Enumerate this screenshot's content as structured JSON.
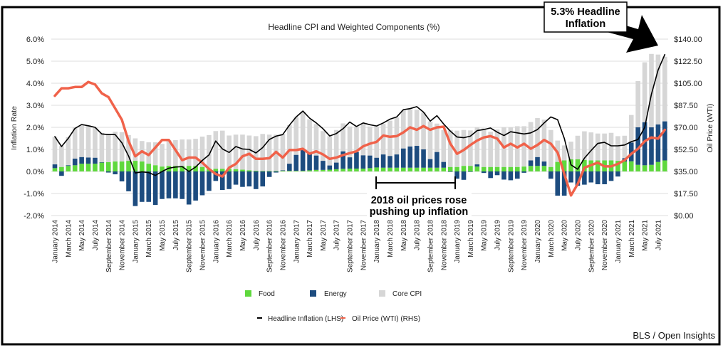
{
  "chart_data": {
    "type": "bar",
    "title": "Headline CPI and Weighted Components (%)",
    "ylabel": "Inflation Rate",
    "y2label": "Oil Price (WTI)",
    "ylim": [
      -2.0,
      6.0
    ],
    "y2lim": [
      0,
      140
    ],
    "yticks": [
      "-2.0%",
      "-1.0%",
      "0.0%",
      "1.0%",
      "2.0%",
      "3.0%",
      "4.0%",
      "5.0%",
      "6.0%"
    ],
    "y2ticks": [
      "$0.00",
      "$17.50",
      "$35.00",
      "$52.50",
      "$70.00",
      "$87.50",
      "$105.00",
      "$122.50",
      "$140.00"
    ],
    "grid": true,
    "legend_placement": "bottom",
    "months": [
      "January",
      "February",
      "March",
      "April",
      "May",
      "June",
      "July",
      "August",
      "September",
      "October",
      "November",
      "December"
    ],
    "start_year": 2014,
    "n_months": 92,
    "series": [
      {
        "name": "Food",
        "kind": "stacked-bar",
        "color": "#5fd83d",
        "values": [
          0.15,
          0.2,
          0.25,
          0.28,
          0.35,
          0.35,
          0.35,
          0.4,
          0.42,
          0.45,
          0.45,
          0.48,
          0.48,
          0.45,
          0.35,
          0.28,
          0.22,
          0.25,
          0.25,
          0.25,
          0.25,
          0.25,
          0.2,
          0.12,
          0.12,
          0.12,
          0.12,
          0.1,
          0.08,
          0.05,
          0.03,
          0.02,
          0.02,
          0.02,
          0.03,
          0.03,
          0.03,
          0.03,
          0.05,
          0.07,
          0.07,
          0.08,
          0.1,
          0.12,
          0.13,
          0.13,
          0.13,
          0.15,
          0.18,
          0.17,
          0.17,
          0.17,
          0.17,
          0.17,
          0.17,
          0.17,
          0.17,
          0.17,
          0.17,
          0.2,
          0.2,
          0.25,
          0.25,
          0.22,
          0.2,
          0.2,
          0.2,
          0.2,
          0.2,
          0.2,
          0.22,
          0.25,
          0.25,
          0.25,
          0.2,
          0.43,
          0.5,
          0.55,
          0.55,
          0.52,
          0.5,
          0.5,
          0.5,
          0.5,
          0.48,
          0.45,
          0.46,
          0.3,
          0.28,
          0.3,
          0.43,
          0.5
        ]
      },
      {
        "name": "Energy",
        "kind": "stacked-bar",
        "color": "#1d4c7f",
        "values": [
          0.17,
          -0.2,
          0.03,
          0.3,
          0.3,
          0.28,
          0.27,
          0.02,
          -0.05,
          -0.13,
          -0.45,
          -0.9,
          -1.57,
          -1.38,
          -1.38,
          -1.52,
          -1.25,
          -1.22,
          -1.22,
          -1.25,
          -1.5,
          -1.32,
          -1.08,
          -0.88,
          -0.43,
          -0.84,
          -0.8,
          -0.6,
          -0.7,
          -0.68,
          -0.8,
          -0.68,
          -0.25,
          -0.05,
          0.02,
          0.32,
          0.72,
          0.94,
          0.79,
          0.65,
          0.41,
          0.19,
          0.3,
          0.79,
          0.51,
          0.75,
          0.6,
          0.57,
          0.44,
          0.6,
          0.53,
          0.6,
          0.87,
          0.96,
          0.99,
          0.83,
          0.39,
          0.71,
          0.26,
          -0.02,
          -0.33,
          -0.38,
          -0.02,
          0.1,
          -0.07,
          -0.3,
          -0.17,
          -0.37,
          -0.4,
          -0.33,
          -0.06,
          0.25,
          0.4,
          0.2,
          -0.33,
          -1.1,
          -1.1,
          -0.5,
          -0.65,
          -0.6,
          -0.5,
          -0.58,
          -0.58,
          -0.43,
          -0.23,
          0.15,
          0.85,
          1.7,
          1.95,
          1.7,
          1.7,
          1.77
        ]
      },
      {
        "name": "Core CPI",
        "kind": "stacked-bar",
        "color": "#d6d6d6",
        "values": [
          1.25,
          0.95,
          1.27,
          1.42,
          1.45,
          1.47,
          1.38,
          1.33,
          1.28,
          1.35,
          1.33,
          1.17,
          1.02,
          0.93,
          0.97,
          1.04,
          1.03,
          1.17,
          1.17,
          1.2,
          1.2,
          1.23,
          1.38,
          1.53,
          1.71,
          1.73,
          1.51,
          1.57,
          1.59,
          1.58,
          1.57,
          1.68,
          1.65,
          1.65,
          1.65,
          1.75,
          1.72,
          1.73,
          1.53,
          1.43,
          1.35,
          1.33,
          1.48,
          1.27,
          1.4,
          1.16,
          1.44,
          1.32,
          1.42,
          1.4,
          1.6,
          1.67,
          1.73,
          1.69,
          1.64,
          1.67,
          1.7,
          1.29,
          1.45,
          1.68,
          1.65,
          1.63,
          1.61,
          1.68,
          1.75,
          1.6,
          1.7,
          1.8,
          1.8,
          1.85,
          1.83,
          1.74,
          1.77,
          1.9,
          1.68,
          0.97,
          0.68,
          0.8,
          1.07,
          1.3,
          1.27,
          1.22,
          1.22,
          1.25,
          1.12,
          1.02,
          1.25,
          2.1,
          2.72,
          3.33,
          3.17,
          2.93
        ]
      },
      {
        "name": "Headline Inflation (LHS)",
        "kind": "line",
        "axis": "left",
        "color": "#000000",
        "values": [
          1.58,
          1.13,
          1.5,
          1.95,
          2.13,
          2.07,
          2.0,
          1.7,
          1.67,
          1.67,
          1.3,
          0.7,
          -0.07,
          -0.02,
          -0.05,
          -0.18,
          0,
          0.15,
          0.2,
          0.22,
          0,
          0.2,
          0.5,
          0.75,
          1.38,
          1.02,
          0.86,
          1.13,
          1.02,
          1.0,
          0.84,
          1.08,
          1.45,
          1.6,
          1.67,
          2.1,
          2.47,
          2.74,
          2.42,
          2.2,
          1.94,
          1.61,
          1.72,
          1.94,
          2.24,
          2.04,
          2.2,
          2.12,
          2.06,
          2.2,
          2.37,
          2.47,
          2.8,
          2.85,
          2.94,
          2.69,
          2.28,
          2.53,
          2.15,
          1.83,
          1.56,
          1.53,
          1.6,
          1.85,
          1.9,
          1.97,
          1.78,
          1.63,
          1.8,
          1.75,
          1.7,
          1.75,
          1.9,
          2.2,
          2.47,
          2.35,
          1.5,
          0.3,
          0.1,
          0.6,
          0.95,
          1.27,
          1.32,
          1.16,
          1.16,
          1.2,
          1.35,
          1.45,
          2.0,
          3.5,
          4.6,
          5.3
        ]
      },
      {
        "name": "Oil Price (WTI) (RHS)",
        "kind": "line",
        "axis": "right",
        "color": "#f0624a",
        "values": [
          95,
          101,
          101,
          102,
          102,
          106,
          104,
          97,
          94,
          85,
          76,
          59,
          47,
          51,
          48,
          54,
          60,
          60,
          52,
          44,
          46,
          46,
          42,
          37,
          33,
          31,
          38,
          41,
          47,
          49,
          45,
          45,
          45.5,
          50.5,
          46,
          52,
          52,
          53,
          49,
          51,
          48.5,
          45,
          46,
          48,
          49.5,
          51,
          55,
          57,
          58.5,
          63.5,
          62.5,
          63,
          66,
          70,
          68,
          71,
          68,
          70,
          70.5,
          57,
          49,
          52,
          56,
          59.5,
          62,
          63,
          61,
          54,
          57,
          54,
          57,
          53,
          56,
          60,
          57,
          50,
          33,
          16,
          25,
          38,
          40,
          42,
          39,
          39,
          41,
          44,
          49,
          53,
          59,
          62,
          61,
          68
        ]
      }
    ],
    "annotations": {
      "callout_line1": "5.3% Headline",
      "callout_line2": "Inflation",
      "bracket_line1": "2018 oil prices rose",
      "bracket_line2": "pushing up inflation",
      "bracket_from": "January 2018",
      "bracket_to": "January 2019"
    }
  },
  "legend": {
    "food": "Food",
    "energy": "Energy",
    "core": "Core CPI",
    "headline": "Headline Inflation (LHS)",
    "oil": "Oil Price (WTI) (RHS)"
  },
  "source": "BLS / Open Insights"
}
